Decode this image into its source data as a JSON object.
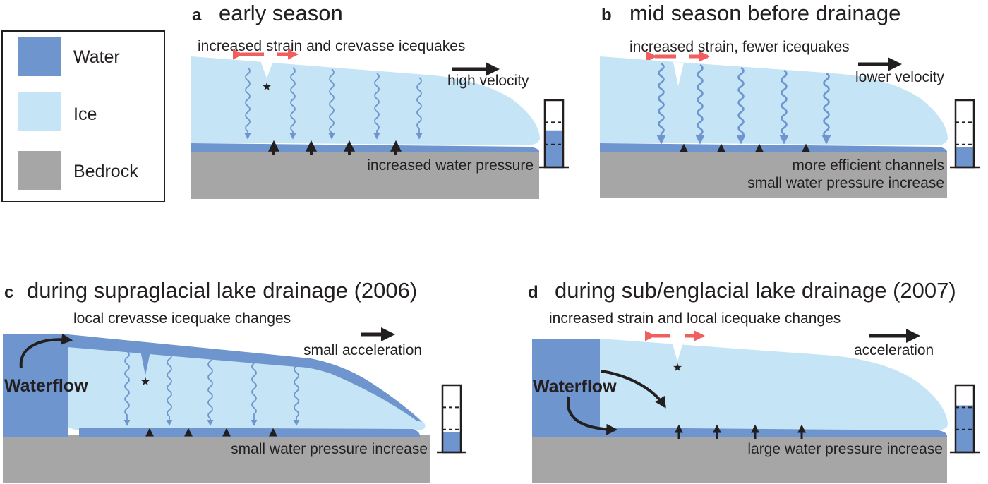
{
  "legend": {
    "water": "Water",
    "ice": "Ice",
    "bedrock": "Bedrock"
  },
  "colors": {
    "water": "#6f95cf",
    "ice": "#c5e5f6",
    "bedrock": "#a6a6a7",
    "strain_arrow": "#f05e5e",
    "text": "#231f20"
  },
  "panels": {
    "a": {
      "letter": "a",
      "title": "early season",
      "top_note": "increased strain and crevasse icequakes",
      "velocity": "high velocity",
      "bottom_note_1": "increased water pressure",
      "gauge_level": 0.55
    },
    "b": {
      "letter": "b",
      "title": "mid season before drainage",
      "top_note": "increased strain, fewer icequakes",
      "velocity": "lower velocity",
      "bottom_note_1": "more efficient channels",
      "bottom_note_2": "small water pressure increase",
      "gauge_level": 0.3
    },
    "c": {
      "letter": "c",
      "title": "during supraglacial lake drainage (2006)",
      "top_note": "local crevasse icequake changes",
      "velocity": "small acceleration",
      "waterflow": "Waterflow",
      "bottom_note_1": "small water pressure increase",
      "gauge_level": 0.3
    },
    "d": {
      "letter": "d",
      "title": "during sub/englacial lake drainage (2007)",
      "top_note": "increased strain and local icequake changes",
      "velocity": "acceleration",
      "waterflow": "Waterflow",
      "bottom_note_1": "large water pressure increase",
      "gauge_level": 0.7
    }
  }
}
